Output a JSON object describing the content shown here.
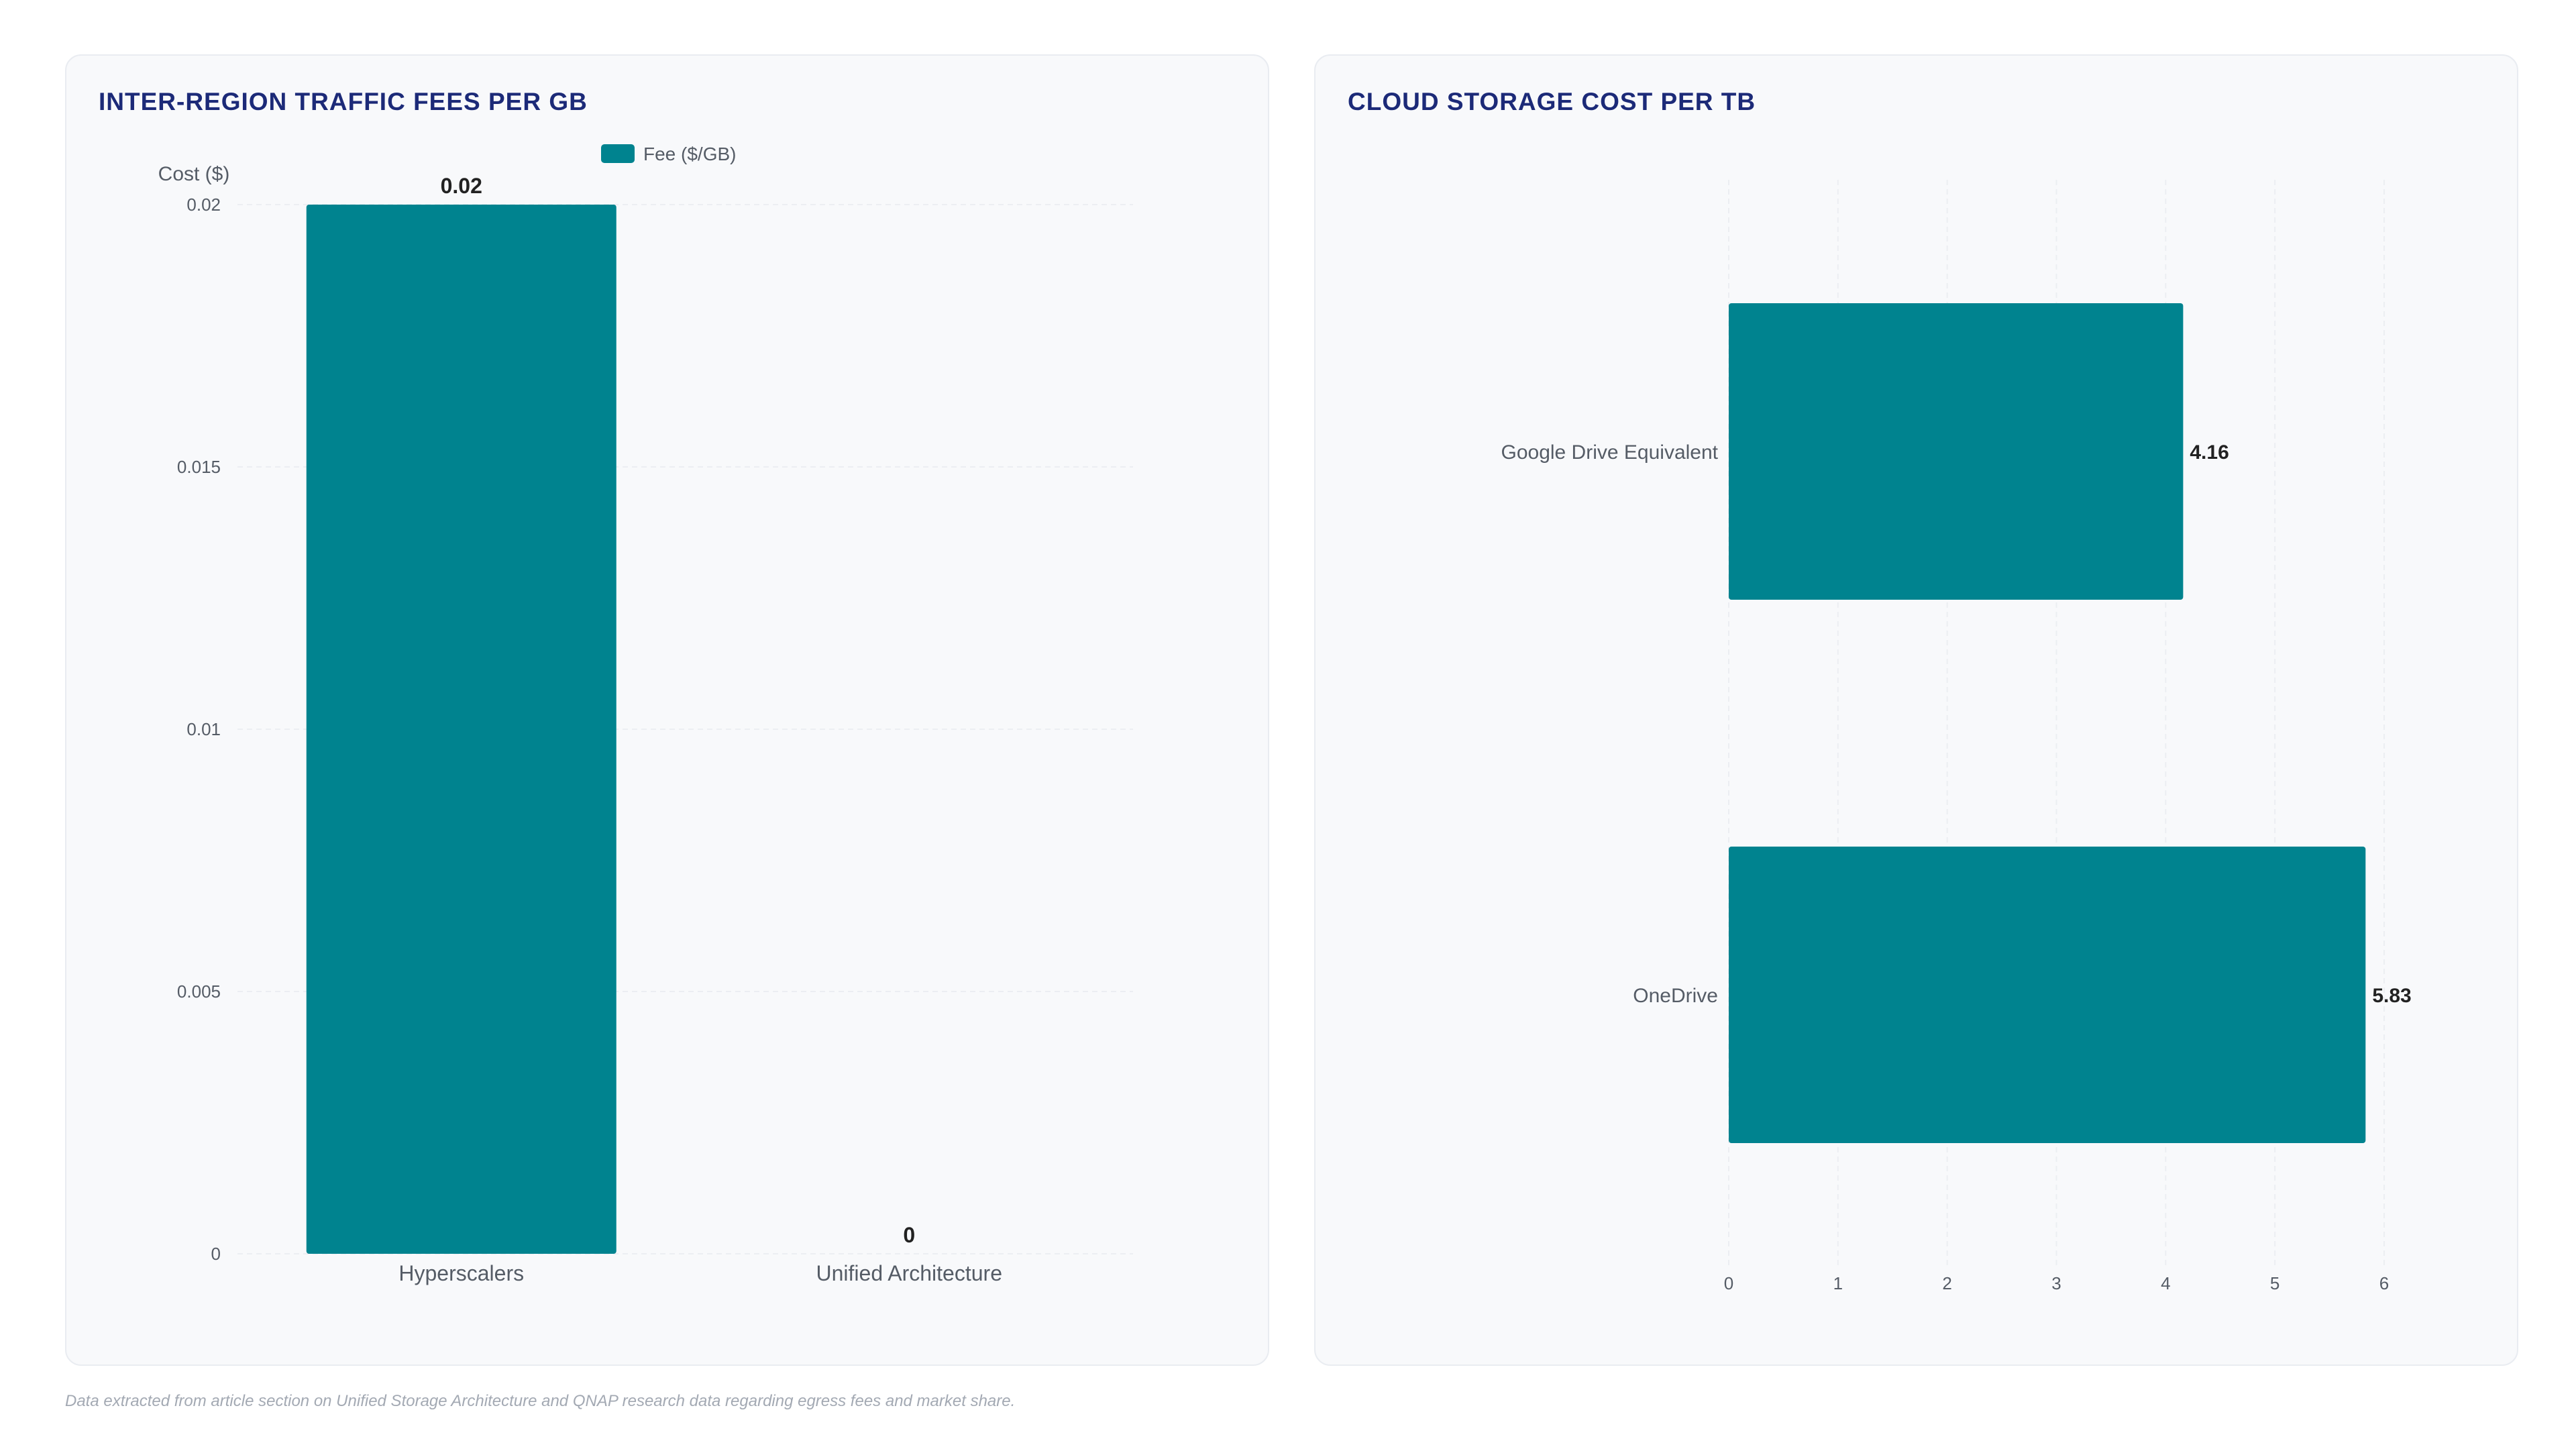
{
  "charts": [
    {
      "title": "INTER-REGION TRAFFIC FEES PER GB",
      "legend_label": "Fee ($/GB)",
      "legend_placement": "top-center",
      "ylabel": "Cost ($)"
    },
    {
      "title": "CLOUD STORAGE COST PER TB"
    }
  ],
  "footnote": "Data extracted from article section on Unified Storage Architecture and QNAP research data regarding egress fees and market share.",
  "colors": {
    "bar": "#00838f",
    "title": "#1c2a78",
    "grid": "#eceef2",
    "tick_text": "#555c66",
    "value_text": "#222222"
  },
  "chart_data": [
    {
      "type": "bar",
      "orientation": "vertical",
      "title": "INTER-REGION TRAFFIC FEES PER GB",
      "categories": [
        "Hyperscalers",
        "Unified Architecture"
      ],
      "series": [
        {
          "name": "Fee ($/GB)",
          "values": [
            0.02,
            0
          ]
        }
      ],
      "data_labels": [
        "0.02",
        "0"
      ],
      "ylabel": "Cost ($)",
      "ylim": [
        0,
        0.02
      ],
      "yticks": [
        "0",
        "0.005",
        "0.01",
        "0.015",
        "0.02"
      ],
      "grid": true,
      "legend": "top-center"
    },
    {
      "type": "bar",
      "orientation": "horizontal",
      "title": "CLOUD STORAGE COST PER TB",
      "categories": [
        "Google Drive Equivalent",
        "OneDrive"
      ],
      "values": [
        4.16,
        5.83
      ],
      "data_labels": [
        "4.16",
        "5.83"
      ],
      "xlim": [
        0,
        6
      ],
      "xticks": [
        "0",
        "1",
        "2",
        "3",
        "4",
        "5",
        "6"
      ],
      "grid": true,
      "legend": "none"
    }
  ]
}
